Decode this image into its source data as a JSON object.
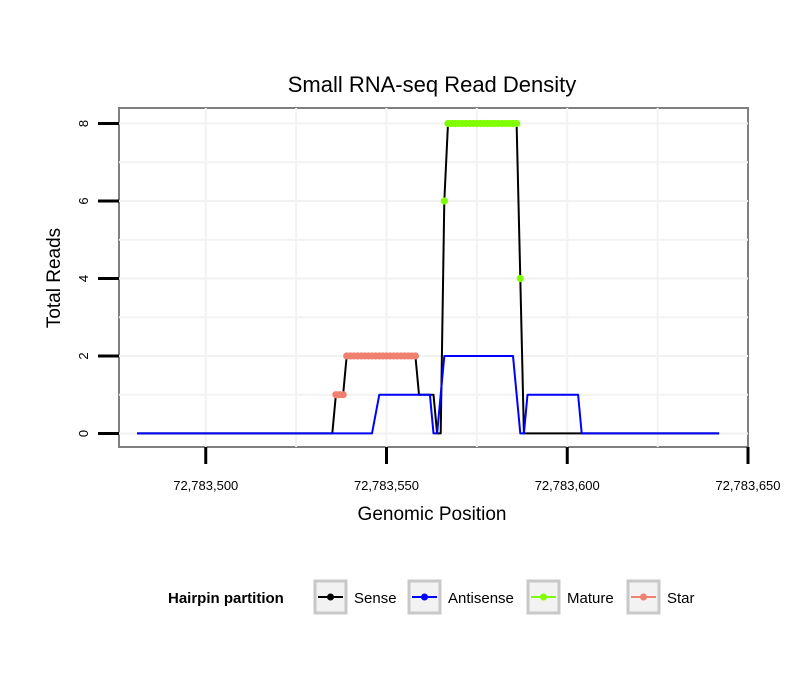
{
  "chart_data": {
    "type": "line",
    "title": "Small RNA-seq Read Density",
    "xlabel": "Genomic Position",
    "ylabel": "Total Reads",
    "xlim": [
      72783476,
      72783650
    ],
    "ylim": [
      -0.35,
      8.4
    ],
    "x_ticks": [
      72783500,
      72783550,
      72783600,
      72783650
    ],
    "x_tick_labels": [
      "72,783,500",
      "72,783,550",
      "72,783,600",
      "72,783,650"
    ],
    "y_ticks": [
      0,
      2,
      4,
      6,
      8
    ],
    "y_tick_labels": [
      "0",
      "2",
      "4",
      "6",
      "8"
    ],
    "grid": true,
    "legend": {
      "title": "Hairpin partition",
      "position": "bottom",
      "entries": [
        "Sense",
        "Antisense",
        "Mature",
        "Star"
      ]
    },
    "series": [
      {
        "name": "Sense",
        "color": "#000000",
        "style": "line",
        "points": [
          [
            72783481,
            0
          ],
          [
            72783535,
            0
          ],
          [
            72783536,
            1
          ],
          [
            72783538,
            1
          ],
          [
            72783539,
            2
          ],
          [
            72783558,
            2
          ],
          [
            72783559,
            1
          ],
          [
            72783562,
            1
          ],
          [
            72783563,
            1
          ],
          [
            72783564,
            0
          ],
          [
            72783565,
            0
          ],
          [
            72783566,
            6
          ],
          [
            72783567,
            8
          ],
          [
            72783586,
            8
          ],
          [
            72783587,
            4
          ],
          [
            72783588,
            0
          ],
          [
            72783642,
            0
          ]
        ]
      },
      {
        "name": "Antisense",
        "color": "#0000ff",
        "style": "line",
        "points": [
          [
            72783481,
            0
          ],
          [
            72783546,
            0
          ],
          [
            72783548,
            1
          ],
          [
            72783560,
            1
          ],
          [
            72783562,
            1
          ],
          [
            72783563,
            0
          ],
          [
            72783564,
            0
          ],
          [
            72783566,
            2
          ],
          [
            72783585,
            2
          ],
          [
            72783587,
            0
          ],
          [
            72783588,
            0
          ],
          [
            72783589,
            1
          ],
          [
            72783603,
            1
          ],
          [
            72783604,
            0
          ],
          [
            72783642,
            0
          ]
        ]
      },
      {
        "name": "Mature",
        "color": "#80ff00",
        "style": "points",
        "points": [
          [
            72783566,
            6
          ],
          [
            72783567,
            8
          ],
          [
            72783568,
            8
          ],
          [
            72783569,
            8
          ],
          [
            72783570,
            8
          ],
          [
            72783571,
            8
          ],
          [
            72783572,
            8
          ],
          [
            72783573,
            8
          ],
          [
            72783574,
            8
          ],
          [
            72783575,
            8
          ],
          [
            72783576,
            8
          ],
          [
            72783577,
            8
          ],
          [
            72783578,
            8
          ],
          [
            72783579,
            8
          ],
          [
            72783580,
            8
          ],
          [
            72783581,
            8
          ],
          [
            72783582,
            8
          ],
          [
            72783583,
            8
          ],
          [
            72783584,
            8
          ],
          [
            72783585,
            8
          ],
          [
            72783586,
            8
          ],
          [
            72783587,
            4
          ]
        ]
      },
      {
        "name": "Star",
        "color": "#f08070",
        "style": "points",
        "points": [
          [
            72783536,
            1
          ],
          [
            72783537,
            1
          ],
          [
            72783538,
            1
          ],
          [
            72783539,
            2
          ],
          [
            72783540,
            2
          ],
          [
            72783541,
            2
          ],
          [
            72783542,
            2
          ],
          [
            72783543,
            2
          ],
          [
            72783544,
            2
          ],
          [
            72783545,
            2
          ],
          [
            72783546,
            2
          ],
          [
            72783547,
            2
          ],
          [
            72783548,
            2
          ],
          [
            72783549,
            2
          ],
          [
            72783550,
            2
          ],
          [
            72783551,
            2
          ],
          [
            72783552,
            2
          ],
          [
            72783553,
            2
          ],
          [
            72783554,
            2
          ],
          [
            72783555,
            2
          ],
          [
            72783556,
            2
          ],
          [
            72783557,
            2
          ],
          [
            72783558,
            2
          ]
        ]
      }
    ]
  }
}
